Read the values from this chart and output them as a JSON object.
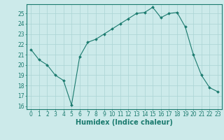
{
  "x": [
    0,
    1,
    2,
    3,
    4,
    5,
    6,
    7,
    8,
    9,
    10,
    11,
    12,
    13,
    14,
    15,
    16,
    17,
    18,
    19,
    20,
    21,
    22,
    23
  ],
  "y": [
    21.5,
    20.5,
    20.0,
    19.0,
    18.5,
    16.1,
    20.8,
    22.2,
    22.5,
    23.0,
    23.5,
    24.0,
    24.5,
    25.0,
    25.1,
    25.6,
    24.6,
    25.0,
    25.1,
    23.7,
    21.0,
    19.0,
    17.8,
    17.4
  ],
  "line_color": "#1a7a6e",
  "marker": "D",
  "marker_size": 2.0,
  "bg_color": "#cceaea",
  "grid_color": "#aad4d4",
  "xlabel": "Humidex (Indice chaleur)",
  "xlim": [
    -0.5,
    23.5
  ],
  "ylim": [
    15.7,
    25.9
  ],
  "yticks": [
    16,
    17,
    18,
    19,
    20,
    21,
    22,
    23,
    24,
    25
  ],
  "tick_fontsize": 5.5,
  "label_fontsize": 7.0
}
